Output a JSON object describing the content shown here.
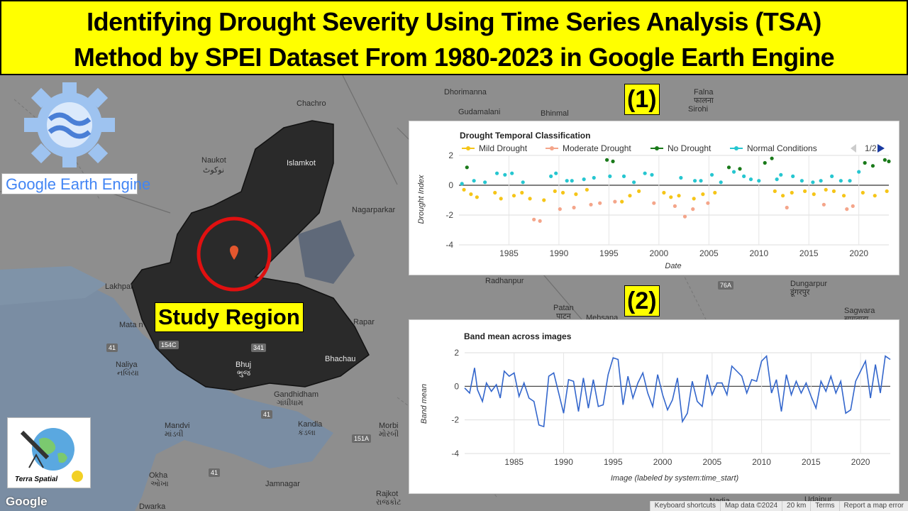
{
  "title": {
    "line1": "Identifying Drought Severity Using Time Series Analysis (TSA)",
    "line2": "Method by SPEI Dataset From 1980-2023 in Google Earth Engine"
  },
  "logos": {
    "gee_text": "Google Earth Engine",
    "terra_spatial": "Terra Spatial"
  },
  "study_region_label": "Study Region",
  "chart_labels": {
    "one": "(1)",
    "two": "(2)"
  },
  "map": {
    "cities": [
      {
        "name": "Chachro"
      },
      {
        "name": "Naukot"
      },
      {
        "name": "نوکوٹ"
      },
      {
        "name": "Islamkot"
      },
      {
        "name": "Nagarparkar"
      },
      {
        "name": "Lakhpat"
      },
      {
        "name": "Mata n"
      },
      {
        "name": "Naliya"
      },
      {
        "name": "નલિયા"
      },
      {
        "name": "Bhuj"
      },
      {
        "name": "ભુજ"
      },
      {
        "name": "Bhachau"
      },
      {
        "name": "Rapar"
      },
      {
        "name": "Gandhidham"
      },
      {
        "name": "ગાંધીધામ"
      },
      {
        "name": "Mandvi"
      },
      {
        "name": "માંડવી"
      },
      {
        "name": "Okha"
      },
      {
        "name": "ઓખા"
      },
      {
        "name": "Dwarka"
      },
      {
        "name": "Jamnagar"
      },
      {
        "name": "Kandla"
      },
      {
        "name": "કંડલા"
      },
      {
        "name": "Morbi"
      },
      {
        "name": "મોરબી"
      },
      {
        "name": "Rajkot"
      },
      {
        "name": "રાજકોટ"
      },
      {
        "name": "Dhorimanna"
      },
      {
        "name": "Gudamalani"
      },
      {
        "name": "Bhinmal"
      },
      {
        "name": "Falna"
      },
      {
        "name": "फालना"
      },
      {
        "name": "Sirohi"
      },
      {
        "name": "Radhanpur"
      },
      {
        "name": "Patan"
      },
      {
        "name": "पाटन"
      },
      {
        "name": "Mehsana"
      },
      {
        "name": "Udaipur"
      },
      {
        "name": "Sagwara"
      },
      {
        "name": "सागवाड़ा"
      },
      {
        "name": "Dungarpur"
      },
      {
        "name": "डूंगरपुर"
      },
      {
        "name": "Nadia"
      }
    ],
    "shields": [
      "41",
      "41",
      "154C",
      "341",
      "41",
      "151A",
      "76A"
    ],
    "footer": [
      "Keyboard shortcuts",
      "Map data ©2024",
      "20 km",
      "Terms",
      "Report a map error"
    ],
    "google": "Google"
  },
  "chart1": {
    "title": "Drought Temporal Classification",
    "legend": [
      "Mild Drought",
      "Moderate Drought",
      "No Drought",
      "Normal Conditions"
    ],
    "legend_colors": [
      "#f5c518",
      "#f4a58a",
      "#1a7a1a",
      "#26c6d0"
    ],
    "pager": "1/2",
    "xlabel": "Date",
    "ylabel": "Drought Index",
    "y_ticks": [
      "2",
      "0",
      "-2",
      "-4"
    ],
    "x_ticks": [
      "1985",
      "1990",
      "1995",
      "2000",
      "2005",
      "2010",
      "2015",
      "2020"
    ]
  },
  "chart2": {
    "title": "Band mean across images",
    "xlabel": "Image (labeled by system:time_start)",
    "ylabel": "Band mean",
    "y_ticks": [
      "2",
      "0",
      "-2",
      "-4"
    ],
    "x_ticks": [
      "1985",
      "1990",
      "1995",
      "2000",
      "2005",
      "2010",
      "2015",
      "2020"
    ],
    "line_color": "#3366cc"
  },
  "chart_data": [
    {
      "type": "scatter",
      "title": "Drought Temporal Classification",
      "xlabel": "Date",
      "ylabel": "Drought Index",
      "ylim": [
        -4,
        2
      ],
      "xlim": [
        1980,
        2023
      ],
      "legend_position": "top",
      "series": [
        {
          "name": "Mild Drought",
          "color": "#f5c518",
          "points": [
            [
              1980.5,
              -0.3
            ],
            [
              1981.2,
              -0.6
            ],
            [
              1981.8,
              -0.8
            ],
            [
              1983.6,
              -0.5
            ],
            [
              1984.2,
              -0.9
            ],
            [
              1985.5,
              -0.7
            ],
            [
              1986.3,
              -0.5
            ],
            [
              1987.1,
              -0.9
            ],
            [
              1988.5,
              -1.0
            ],
            [
              1989.6,
              -0.4
            ],
            [
              1990.4,
              -0.5
            ],
            [
              1991.7,
              -0.6
            ],
            [
              1992.8,
              -0.3
            ],
            [
              1996.3,
              -1.1
            ],
            [
              1997.1,
              -0.7
            ],
            [
              1998.0,
              -0.4
            ],
            [
              2000.5,
              -0.5
            ],
            [
              2001.2,
              -0.8
            ],
            [
              2002.0,
              -0.7
            ],
            [
              2003.5,
              -0.9
            ],
            [
              2004.4,
              -0.6
            ],
            [
              2005.6,
              -0.5
            ],
            [
              2011.6,
              -0.4
            ],
            [
              2012.4,
              -0.7
            ],
            [
              2013.3,
              -0.5
            ],
            [
              2014.6,
              -0.4
            ],
            [
              2015.5,
              -0.6
            ],
            [
              2016.7,
              -0.3
            ],
            [
              2017.5,
              -0.4
            ],
            [
              2018.5,
              -0.7
            ],
            [
              2020.4,
              -0.5
            ],
            [
              2021.6,
              -0.7
            ],
            [
              2022.8,
              -0.4
            ]
          ]
        },
        {
          "name": "Moderate Drought",
          "color": "#f4a58a",
          "points": [
            [
              1987.5,
              -2.3
            ],
            [
              1988.1,
              -2.4
            ],
            [
              1990.1,
              -1.6
            ],
            [
              1991.5,
              -1.5
            ],
            [
              1993.2,
              -1.3
            ],
            [
              1994.1,
              -1.2
            ],
            [
              1995.6,
              -1.1
            ],
            [
              1999.5,
              -1.2
            ],
            [
              2001.6,
              -1.4
            ],
            [
              2002.6,
              -2.1
            ],
            [
              2003.4,
              -1.6
            ],
            [
              2004.9,
              -1.2
            ],
            [
              2012.8,
              -1.5
            ],
            [
              2016.5,
              -1.3
            ],
            [
              2018.8,
              -1.6
            ],
            [
              2019.4,
              -1.4
            ]
          ]
        },
        {
          "name": "No Drought",
          "color": "#1a7a1a",
          "points": [
            [
              1980.8,
              1.2
            ],
            [
              1994.8,
              1.7
            ],
            [
              1995.4,
              1.6
            ],
            [
              2007.0,
              1.2
            ],
            [
              2008.1,
              1.1
            ],
            [
              2010.6,
              1.5
            ],
            [
              2011.3,
              1.8
            ],
            [
              2020.6,
              1.5
            ],
            [
              2021.4,
              1.3
            ],
            [
              2022.6,
              1.7
            ],
            [
              2023.0,
              1.6
            ]
          ]
        },
        {
          "name": "Normal Conditions",
          "color": "#26c6d0",
          "points": [
            [
              1980.3,
              0.1
            ],
            [
              1981.5,
              0.3
            ],
            [
              1982.6,
              0.2
            ],
            [
              1983.8,
              0.8
            ],
            [
              1984.6,
              0.7
            ],
            [
              1985.3,
              0.8
            ],
            [
              1986.4,
              0.2
            ],
            [
              1989.2,
              0.6
            ],
            [
              1989.7,
              0.8
            ],
            [
              1990.8,
              0.3
            ],
            [
              1991.3,
              0.3
            ],
            [
              1992.5,
              0.4
            ],
            [
              1993.5,
              0.5
            ],
            [
              1995.1,
              0.6
            ],
            [
              1996.5,
              0.6
            ],
            [
              1997.5,
              0.2
            ],
            [
              1998.6,
              0.8
            ],
            [
              1999.3,
              0.7
            ],
            [
              2002.2,
              0.5
            ],
            [
              2003.6,
              0.3
            ],
            [
              2004.2,
              0.3
            ],
            [
              2005.3,
              0.7
            ],
            [
              2006.2,
              0.2
            ],
            [
              2007.5,
              0.9
            ],
            [
              2008.5,
              0.6
            ],
            [
              2009.2,
              0.4
            ],
            [
              2010.0,
              0.3
            ],
            [
              2011.8,
              0.4
            ],
            [
              2012.2,
              0.7
            ],
            [
              2013.4,
              0.6
            ],
            [
              2014.3,
              0.3
            ],
            [
              2015.4,
              0.2
            ],
            [
              2016.2,
              0.3
            ],
            [
              2017.3,
              0.6
            ],
            [
              2018.2,
              0.3
            ],
            [
              2019.1,
              0.3
            ],
            [
              2020.0,
              0.9
            ]
          ]
        }
      ]
    },
    {
      "type": "line",
      "title": "Band mean across images",
      "xlabel": "Image (labeled by system:time_start)",
      "ylabel": "Band mean",
      "ylim": [
        -4,
        2
      ],
      "xlim": [
        1980,
        2023
      ],
      "series": [
        {
          "name": "",
          "color": "#3366cc",
          "x": [
            1980.0,
            1980.5,
            1981.0,
            1981.3,
            1981.8,
            1982.2,
            1982.7,
            1983.2,
            1983.6,
            1984.0,
            1984.5,
            1985.0,
            1985.5,
            1986.0,
            1986.5,
            1987.0,
            1987.5,
            1988.0,
            1988.5,
            1989.0,
            1989.5,
            1990.0,
            1990.5,
            1991.0,
            1991.5,
            1992.0,
            1992.5,
            1993.0,
            1993.5,
            1994.0,
            1994.5,
            1995.0,
            1995.5,
            1996.0,
            1996.5,
            1997.0,
            1997.5,
            1998.0,
            1998.5,
            1999.0,
            1999.5,
            2000.0,
            2000.5,
            2001.0,
            2001.5,
            2002.0,
            2002.5,
            2003.0,
            2003.5,
            2004.0,
            2004.5,
            2005.0,
            2005.5,
            2006.0,
            2006.5,
            2007.0,
            2007.5,
            2008.0,
            2008.5,
            2009.0,
            2009.5,
            2010.0,
            2010.5,
            2011.0,
            2011.5,
            2012.0,
            2012.5,
            2013.0,
            2013.5,
            2014.0,
            2014.5,
            2015.0,
            2015.5,
            2016.0,
            2016.5,
            2017.0,
            2017.5,
            2018.0,
            2018.5,
            2019.0,
            2019.5,
            2020.0,
            2020.5,
            2021.0,
            2021.5,
            2022.0,
            2022.5,
            2023.0
          ],
          "values": [
            -0.1,
            -0.4,
            1.1,
            -0.2,
            -0.9,
            0.2,
            -0.3,
            0.1,
            -0.7,
            0.9,
            0.6,
            0.8,
            -0.6,
            0.2,
            -0.7,
            -0.9,
            -2.3,
            -2.4,
            0.6,
            0.8,
            -0.4,
            -1.6,
            0.4,
            0.3,
            -1.5,
            0.5,
            -1.3,
            0.4,
            -1.2,
            -1.1,
            0.7,
            1.7,
            1.6,
            -1.1,
            0.6,
            -0.7,
            0.2,
            0.8,
            -0.4,
            -1.2,
            0.7,
            -0.5,
            -1.4,
            -0.8,
            0.5,
            -2.1,
            -1.6,
            0.3,
            -0.9,
            -1.2,
            0.7,
            -0.5,
            0.2,
            0.2,
            -0.5,
            1.2,
            0.9,
            0.6,
            -0.4,
            0.4,
            0.3,
            1.5,
            1.8,
            -0.4,
            0.4,
            -1.5,
            0.7,
            -0.5,
            0.3,
            -0.4,
            0.2,
            -0.6,
            -1.3,
            0.3,
            -0.3,
            0.6,
            -0.4,
            0.3,
            -1.6,
            -1.4,
            0.3,
            0.9,
            1.5,
            -0.7,
            1.3,
            -0.4,
            1.8,
            1.6
          ]
        }
      ]
    }
  ]
}
